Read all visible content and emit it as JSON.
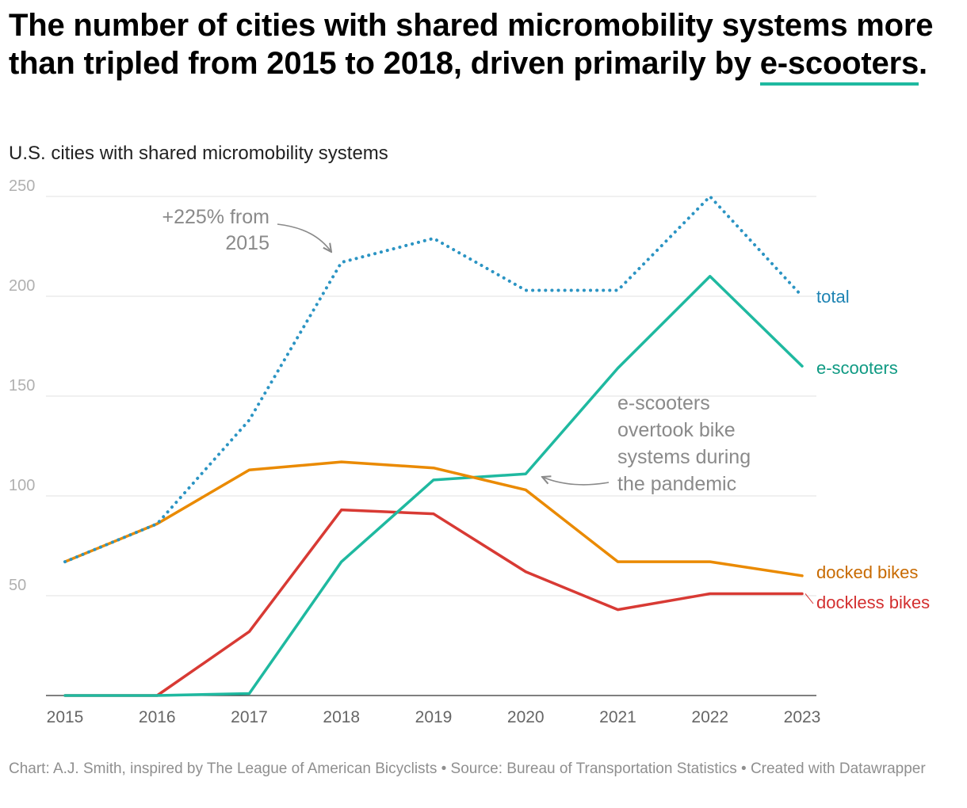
{
  "title": {
    "before": "The number of cities with shared micromobility systems more than tripled from 2015 to 2018, driven primarily by ",
    "highlight": "e-scooters",
    "after": "."
  },
  "subtitle": "U.S. cities with shared micromobility systems",
  "footer": "Chart: A.J. Smith, inspired by The League of American Bicyclists • Source: Bureau of Transportation Statistics • Created with Datawrapper",
  "chart_data": {
    "type": "line",
    "title": "U.S. cities with shared micromobility systems",
    "xlabel": "",
    "ylabel": "",
    "x": [
      2015,
      2016,
      2017,
      2018,
      2019,
      2020,
      2021,
      2022,
      2023
    ],
    "ylim": [
      0,
      250
    ],
    "yticks": [
      50,
      100,
      150,
      200,
      250
    ],
    "grid": true,
    "series": [
      {
        "name": "total",
        "label": "total",
        "color": "#2b94c3",
        "labelColor": "#1d83b3",
        "style": "dotted",
        "values": [
          67,
          86,
          138,
          217,
          229,
          203,
          203,
          250,
          200
        ]
      },
      {
        "name": "e-scooters",
        "label": "e-scooters",
        "color": "#1fb9a0",
        "labelColor": "#0f9a83",
        "style": "solid",
        "values": [
          0,
          0,
          1,
          67,
          108,
          111,
          164,
          210,
          165
        ]
      },
      {
        "name": "docked bikes",
        "label": "docked bikes",
        "color": "#ea8a00",
        "labelColor": "#c86a00",
        "style": "solid",
        "values": [
          67,
          86,
          113,
          117,
          114,
          103,
          67,
          67,
          60
        ]
      },
      {
        "name": "dockless bikes",
        "label": "dockless bikes",
        "color": "#d83a34",
        "labelColor": "#d32f2f",
        "style": "solid",
        "values": [
          0,
          0,
          32,
          93,
          91,
          62,
          43,
          51,
          51
        ]
      }
    ],
    "annotations": [
      {
        "id": "growth",
        "lines": [
          "+225% from",
          "2015"
        ]
      },
      {
        "id": "pandemic",
        "lines": [
          "e-scooters",
          "overtook bike",
          "systems during",
          "the pandemic"
        ]
      }
    ]
  }
}
